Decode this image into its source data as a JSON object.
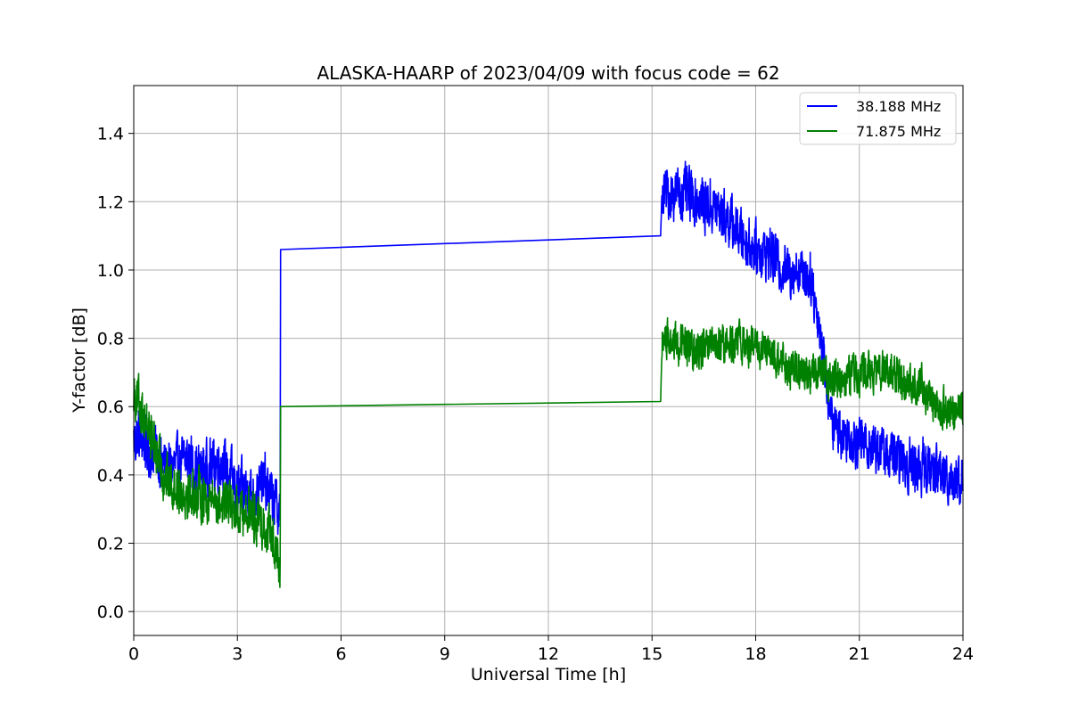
{
  "chart_data": {
    "type": "line",
    "title": "ALASKA-HAARP of 2023/04/09 with focus code = 62",
    "xlabel": "Universal Time [h]",
    "ylabel": "Y-factor [dB]",
    "xlim": [
      0,
      24
    ],
    "ylim": [
      -0.07,
      1.54
    ],
    "xticks": [
      0,
      3,
      6,
      9,
      12,
      15,
      18,
      21,
      24
    ],
    "yticks": [
      0.0,
      0.2,
      0.4,
      0.6,
      0.8,
      1.0,
      1.2,
      1.4
    ],
    "xtick_labels": [
      "0",
      "3",
      "6",
      "9",
      "12",
      "15",
      "18",
      "21",
      "24"
    ],
    "ytick_labels": [
      "0.0",
      "0.2",
      "0.4",
      "0.6",
      "0.8",
      "1.0",
      "1.2",
      "1.4"
    ],
    "grid": true,
    "legend_position": "top-right",
    "series": [
      {
        "name": "38.188 MHz",
        "color": "#0000ff",
        "points": [
          [
            0.0,
            0.5
          ],
          [
            0.2,
            0.52
          ],
          [
            0.4,
            0.48
          ],
          [
            0.6,
            0.47
          ],
          [
            0.8,
            0.44
          ],
          [
            1.0,
            0.42
          ],
          [
            1.3,
            0.43
          ],
          [
            1.6,
            0.45
          ],
          [
            1.9,
            0.41
          ],
          [
            2.2,
            0.42
          ],
          [
            2.5,
            0.44
          ],
          [
            2.8,
            0.4
          ],
          [
            3.0,
            0.35
          ],
          [
            3.2,
            0.36
          ],
          [
            3.5,
            0.34
          ],
          [
            3.8,
            0.38
          ],
          [
            4.0,
            0.33
          ],
          [
            4.2,
            0.3
          ],
          [
            4.24,
            0.32
          ],
          [
            4.25,
            1.06
          ],
          [
            15.25,
            1.1
          ],
          [
            15.3,
            1.22
          ],
          [
            15.6,
            1.23
          ],
          [
            16.0,
            1.22
          ],
          [
            16.4,
            1.2
          ],
          [
            16.8,
            1.18
          ],
          [
            17.2,
            1.15
          ],
          [
            17.6,
            1.1
          ],
          [
            18.0,
            1.06
          ],
          [
            18.4,
            1.05
          ],
          [
            18.8,
            1.0
          ],
          [
            19.2,
            1.0
          ],
          [
            19.6,
            0.98
          ],
          [
            19.9,
            0.8
          ],
          [
            20.2,
            0.55
          ],
          [
            20.6,
            0.52
          ],
          [
            21.0,
            0.5
          ],
          [
            21.5,
            0.48
          ],
          [
            22.0,
            0.45
          ],
          [
            22.5,
            0.43
          ],
          [
            23.0,
            0.42
          ],
          [
            23.5,
            0.4
          ],
          [
            24.0,
            0.38
          ]
        ],
        "noise_amplitude": [
          [
            0,
            0.11
          ],
          [
            4.24,
            0.11
          ],
          [
            4.25,
            0.0
          ],
          [
            15.25,
            0.0
          ],
          [
            15.3,
            0.11
          ],
          [
            20.0,
            0.1
          ],
          [
            24.0,
            0.11
          ]
        ]
      },
      {
        "name": "71.875 MHz",
        "color": "#008000",
        "points": [
          [
            0.0,
            0.65
          ],
          [
            0.2,
            0.6
          ],
          [
            0.4,
            0.55
          ],
          [
            0.6,
            0.48
          ],
          [
            0.8,
            0.42
          ],
          [
            1.0,
            0.38
          ],
          [
            1.3,
            0.36
          ],
          [
            1.6,
            0.35
          ],
          [
            1.9,
            0.34
          ],
          [
            2.2,
            0.33
          ],
          [
            2.5,
            0.32
          ],
          [
            2.8,
            0.31
          ],
          [
            3.0,
            0.3
          ],
          [
            3.3,
            0.29
          ],
          [
            3.6,
            0.27
          ],
          [
            3.9,
            0.24
          ],
          [
            4.1,
            0.2
          ],
          [
            4.24,
            0.12
          ],
          [
            4.25,
            0.6
          ],
          [
            15.25,
            0.615
          ],
          [
            15.3,
            0.8
          ],
          [
            15.8,
            0.78
          ],
          [
            16.3,
            0.76
          ],
          [
            16.8,
            0.77
          ],
          [
            17.3,
            0.79
          ],
          [
            17.8,
            0.78
          ],
          [
            18.3,
            0.76
          ],
          [
            18.8,
            0.72
          ],
          [
            19.3,
            0.7
          ],
          [
            19.8,
            0.7
          ],
          [
            20.3,
            0.68
          ],
          [
            20.8,
            0.7
          ],
          [
            21.3,
            0.7
          ],
          [
            21.8,
            0.7
          ],
          [
            22.3,
            0.68
          ],
          [
            22.8,
            0.66
          ],
          [
            23.3,
            0.6
          ],
          [
            23.7,
            0.58
          ],
          [
            24.0,
            0.6
          ]
        ],
        "noise_amplitude": [
          [
            0,
            0.1
          ],
          [
            4.24,
            0.1
          ],
          [
            4.25,
            0.0
          ],
          [
            15.25,
            0.0
          ],
          [
            15.3,
            0.08
          ],
          [
            24.0,
            0.08
          ]
        ]
      }
    ]
  }
}
